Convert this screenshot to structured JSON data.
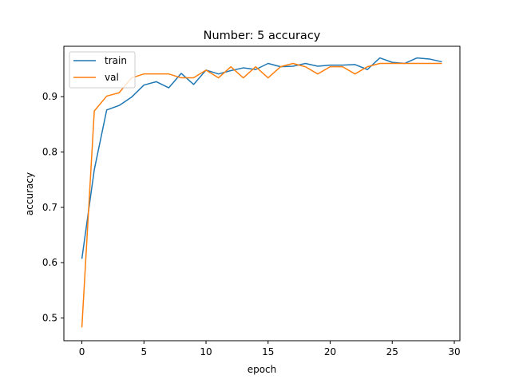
{
  "chart_data": {
    "type": "line",
    "title": "Number: 5 accuracy",
    "xlabel": "epoch",
    "ylabel": "accuracy",
    "xlim": [
      -1.45,
      30.45
    ],
    "ylim": [
      0.459,
      0.991
    ],
    "xticks": [
      0,
      5,
      10,
      15,
      20,
      25,
      30
    ],
    "yticks": [
      0.5,
      0.6,
      0.7,
      0.8,
      0.9
    ],
    "grid": false,
    "legend_position": "top-left",
    "x": [
      0,
      1,
      2,
      3,
      4,
      5,
      6,
      7,
      8,
      9,
      10,
      11,
      12,
      13,
      14,
      15,
      16,
      17,
      18,
      19,
      20,
      21,
      22,
      23,
      24,
      25,
      26,
      27,
      28,
      29
    ],
    "series": [
      {
        "name": "train",
        "color": "#1f77b4",
        "values": [
          0.607,
          0.768,
          0.876,
          0.884,
          0.899,
          0.921,
          0.927,
          0.916,
          0.942,
          0.922,
          0.948,
          0.941,
          0.947,
          0.952,
          0.949,
          0.96,
          0.954,
          0.955,
          0.96,
          0.955,
          0.957,
          0.957,
          0.958,
          0.949,
          0.97,
          0.962,
          0.96,
          0.97,
          0.968,
          0.963
        ]
      },
      {
        "name": "val",
        "color": "#ff7f0e",
        "values": [
          0.483,
          0.874,
          0.901,
          0.907,
          0.934,
          0.941,
          0.941,
          0.941,
          0.934,
          0.934,
          0.948,
          0.934,
          0.954,
          0.934,
          0.954,
          0.934,
          0.954,
          0.96,
          0.954,
          0.941,
          0.954,
          0.954,
          0.941,
          0.954,
          0.96,
          0.96,
          0.96,
          0.96,
          0.96,
          0.96
        ]
      }
    ]
  }
}
